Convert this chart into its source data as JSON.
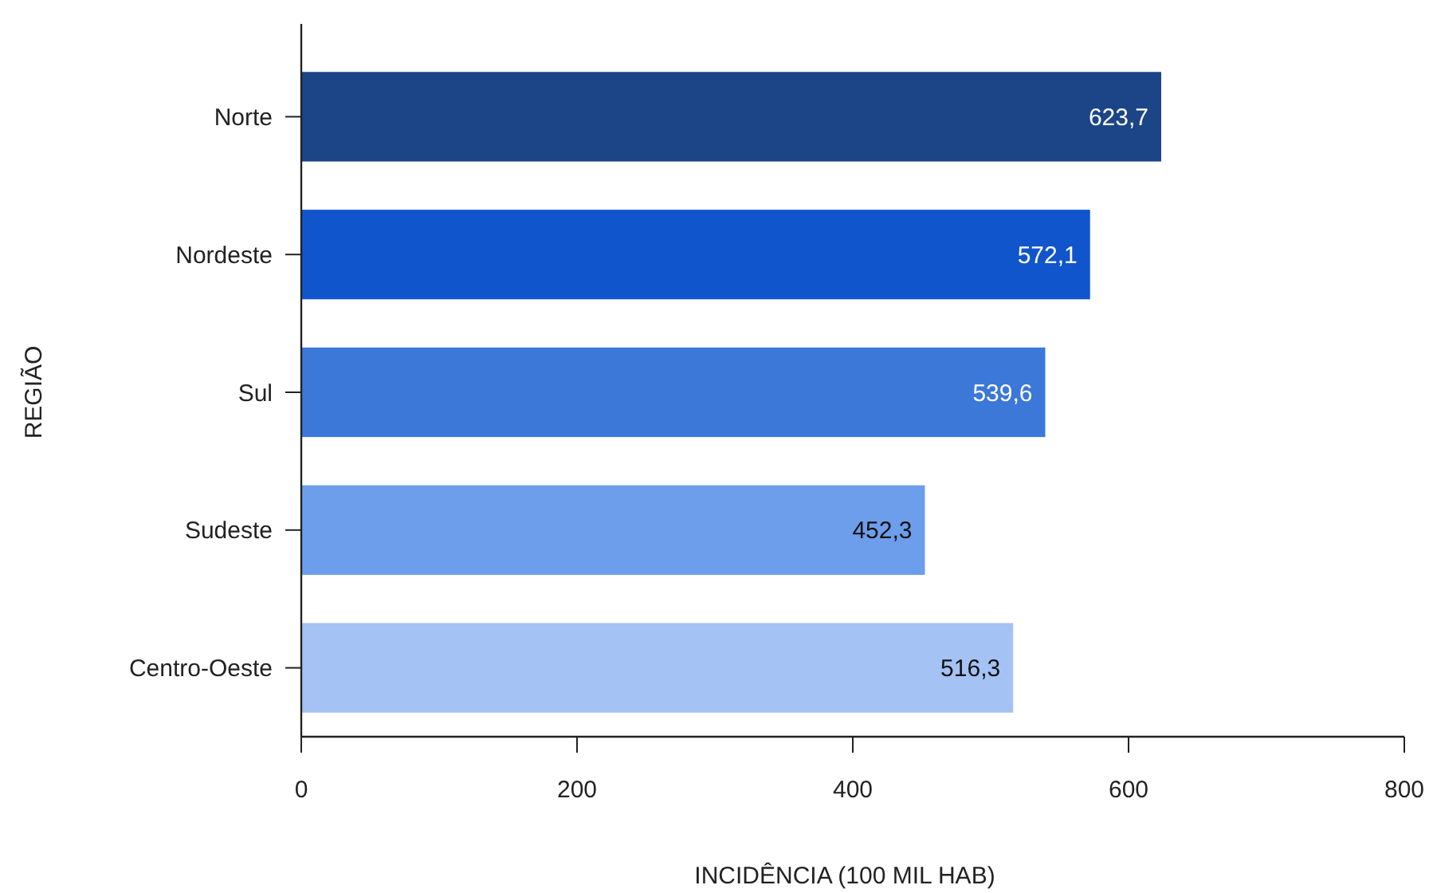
{
  "chart_data": {
    "type": "bar",
    "orientation": "horizontal",
    "xlabel": "INCIDÊNCIA (100 MIL HAB)",
    "ylabel": "REGIÃO",
    "categories": [
      "Norte",
      "Nordeste",
      "Sul",
      "Sudeste",
      "Centro-Oeste"
    ],
    "values": [
      623.7,
      572.1,
      539.6,
      452.3,
      516.3
    ],
    "colors": [
      "#1c4587",
      "#1155cc",
      "#3c78d8",
      "#6d9eeb",
      "#a4c2f4"
    ],
    "value_labels": [
      "623,7",
      "572,1",
      "539,6",
      "452,3",
      "516,3"
    ],
    "xlim": [
      0,
      800
    ],
    "xticks": [
      0,
      200,
      400,
      600,
      800
    ],
    "grid": false
  }
}
